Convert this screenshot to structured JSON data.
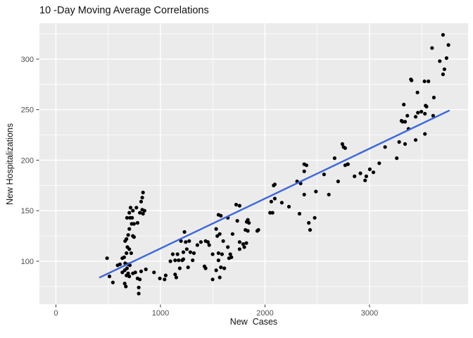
{
  "chart": {
    "title": "10 -Day Moving Average Correlations",
    "xlabel": "New  Cases",
    "ylabel": "New Hospitalizations"
  },
  "chart_data": {
    "type": "scatter",
    "title": "10 -Day Moving Average Correlations",
    "xlabel": "New Cases",
    "ylabel": "New Hospitalizations",
    "grid": true,
    "legend": "none",
    "panel_bg": "#EBEBEB",
    "grid_major_color": "#FFFFFF",
    "grid_minor_color": "#FFFFFF",
    "point_color": "#000000",
    "trend_color": "#3A66E0",
    "tick_label_color": "#4D4D4D",
    "tick_mark_color": "#333333",
    "xlim": [
      -158,
      3943
    ],
    "ylim": [
      57.5,
      335.5
    ],
    "x_ticks_major": [
      0,
      1000,
      2000,
      3000
    ],
    "x_ticks_minor": [
      500,
      1500,
      2500,
      3500
    ],
    "y_ticks_major": [
      100,
      150,
      200,
      250,
      300
    ],
    "y_ticks_minor": [
      75,
      125,
      175,
      225,
      275,
      325
    ],
    "trend_line": {
      "x1": 420,
      "y1": 84,
      "x2": 3760,
      "y2": 249
    },
    "points": [
      [
        833,
        168
      ],
      [
        826,
        163
      ],
      [
        815,
        159
      ],
      [
        770,
        153
      ],
      [
        714,
        153
      ],
      [
        826,
        151
      ],
      [
        848,
        150
      ],
      [
        736,
        150
      ],
      [
        803,
        148
      ],
      [
        702,
        148
      ],
      [
        833,
        147
      ],
      [
        680,
        143
      ],
      [
        709,
        143
      ],
      [
        729,
        143
      ],
      [
        781,
        138
      ],
      [
        747,
        137
      ],
      [
        725,
        137
      ],
      [
        702,
        132
      ],
      [
        691,
        126
      ],
      [
        736,
        125
      ],
      [
        747,
        124
      ],
      [
        675,
        122
      ],
      [
        662,
        120
      ],
      [
        684,
        114
      ],
      [
        702,
        112
      ],
      [
        675,
        108
      ],
      [
        720,
        108
      ],
      [
        653,
        104
      ],
      [
        635,
        103
      ],
      [
        489,
        103
      ],
      [
        613,
        97
      ],
      [
        691,
        97
      ],
      [
        590,
        96
      ],
      [
        707,
        96
      ],
      [
        662,
        98
      ],
      [
        680,
        93
      ],
      [
        658,
        91
      ],
      [
        635,
        89
      ],
      [
        691,
        88
      ],
      [
        736,
        88
      ],
      [
        759,
        89
      ],
      [
        815,
        90
      ],
      [
        860,
        92
      ],
      [
        675,
        86
      ],
      [
        702,
        85
      ],
      [
        512,
        85
      ],
      [
        545,
        79
      ],
      [
        658,
        78
      ],
      [
        669,
        75
      ],
      [
        938,
        89
      ],
      [
        994,
        83
      ],
      [
        1039,
        82
      ],
      [
        781,
        83
      ],
      [
        803,
        82
      ],
      [
        792,
        74
      ],
      [
        792,
        68
      ],
      [
        1555,
        146
      ],
      [
        1578,
        145
      ],
      [
        1724,
        156
      ],
      [
        1757,
        155
      ],
      [
        1735,
        140
      ],
      [
        1836,
        141
      ],
      [
        1825,
        139
      ],
      [
        1645,
        143
      ],
      [
        1230,
        129
      ],
      [
        1533,
        132
      ],
      [
        1567,
        127
      ],
      [
        1544,
        125
      ],
      [
        1813,
        131
      ],
      [
        1836,
        130
      ],
      [
        1690,
        127
      ],
      [
        1937,
        131
      ],
      [
        1196,
        120
      ],
      [
        1241,
        119
      ],
      [
        1275,
        120
      ],
      [
        1353,
        116
      ],
      [
        1387,
        119
      ],
      [
        1432,
        120
      ],
      [
        1454,
        119
      ],
      [
        1466,
        116
      ],
      [
        1600,
        120
      ],
      [
        1645,
        114
      ],
      [
        1757,
        119
      ],
      [
        1791,
        117
      ],
      [
        1802,
        114
      ],
      [
        1757,
        112
      ],
      [
        1252,
        112
      ],
      [
        1286,
        109
      ],
      [
        1320,
        108
      ],
      [
        1118,
        107
      ],
      [
        1163,
        107
      ],
      [
        1219,
        109
      ],
      [
        1499,
        107
      ],
      [
        1555,
        108
      ],
      [
        1589,
        107
      ],
      [
        1668,
        107
      ],
      [
        1679,
        104
      ],
      [
        1656,
        103
      ],
      [
        1095,
        100
      ],
      [
        1140,
        101
      ],
      [
        1174,
        101
      ],
      [
        1208,
        101
      ],
      [
        1219,
        102
      ],
      [
        1308,
        101
      ],
      [
        1555,
        101
      ],
      [
        1578,
        94
      ],
      [
        1533,
        91
      ],
      [
        1611,
        93
      ],
      [
        1421,
        95
      ],
      [
        1432,
        93
      ],
      [
        1185,
        93
      ],
      [
        1264,
        94
      ],
      [
        1050,
        86
      ],
      [
        1140,
        87
      ],
      [
        1151,
        84
      ],
      [
        1499,
        82
      ],
      [
        1567,
        84
      ],
      [
        1822,
        118
      ],
      [
        2375,
        196
      ],
      [
        2397,
        195
      ],
      [
        2375,
        189
      ],
      [
        2565,
        186
      ],
      [
        2094,
        176
      ],
      [
        2083,
        175
      ],
      [
        2307,
        179
      ],
      [
        2341,
        177
      ],
      [
        2700,
        179
      ],
      [
        2790,
        196
      ],
      [
        2375,
        166
      ],
      [
        2487,
        169
      ],
      [
        2611,
        166
      ],
      [
        2060,
        159
      ],
      [
        2094,
        162
      ],
      [
        2161,
        158
      ],
      [
        2229,
        154
      ],
      [
        2049,
        148
      ],
      [
        2072,
        148
      ],
      [
        2330,
        147
      ],
      [
        2476,
        143
      ],
      [
        1847,
        138
      ],
      [
        1926,
        130
      ],
      [
        2419,
        138
      ],
      [
        2431,
        131
      ],
      [
        2740,
        216
      ],
      [
        2752,
        213
      ],
      [
        2666,
        202
      ],
      [
        2794,
        196
      ],
      [
        2767,
        212
      ],
      [
        2767,
        195
      ],
      [
        3328,
        255
      ],
      [
        3496,
        248
      ],
      [
        3530,
        246
      ],
      [
        3463,
        247
      ],
      [
        3362,
        244
      ],
      [
        3441,
        243
      ],
      [
        3609,
        244
      ],
      [
        3306,
        239
      ],
      [
        3317,
        238
      ],
      [
        3340,
        238
      ],
      [
        3373,
        231
      ],
      [
        3530,
        226
      ],
      [
        3284,
        218
      ],
      [
        3340,
        216
      ],
      [
        3441,
        220
      ],
      [
        3149,
        213
      ],
      [
        3261,
        202
      ],
      [
        3093,
        197
      ],
      [
        3003,
        191
      ],
      [
        3037,
        188
      ],
      [
        2913,
        187
      ],
      [
        2857,
        184
      ],
      [
        2969,
        184
      ],
      [
        2958,
        180
      ],
      [
        3703,
        324
      ],
      [
        3755,
        314
      ],
      [
        3598,
        311
      ],
      [
        3737,
        301
      ],
      [
        3672,
        298
      ],
      [
        3717,
        290
      ],
      [
        3703,
        285
      ],
      [
        3396,
        280
      ],
      [
        3402,
        279
      ],
      [
        3526,
        278
      ],
      [
        3564,
        278
      ],
      [
        3459,
        267
      ],
      [
        3616,
        262
      ],
      [
        3537,
        254
      ],
      [
        3546,
        253
      ]
    ]
  }
}
